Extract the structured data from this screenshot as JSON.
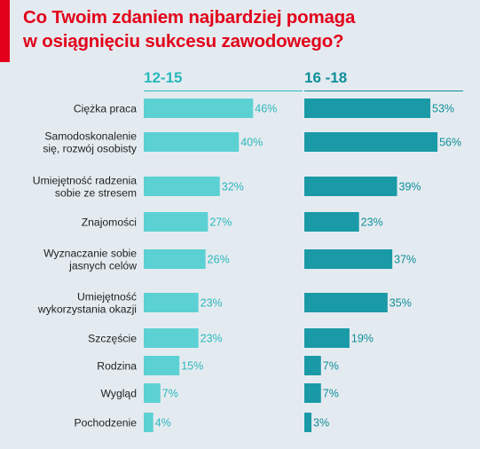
{
  "title_lines": [
    "Co Twoim zdaniem najbardziej pomaga",
    "w osiągnięciu sukcesu zawodowego?"
  ],
  "colors": {
    "title": "#e2001a",
    "accent": "#e2001a",
    "left": "#5cd1d3",
    "right": "#1a9aa6",
    "left_label": "#29b8bd",
    "right_label": "#0f8e99",
    "background": "#e4ebf0"
  },
  "chart_data": {
    "type": "bar",
    "orientation": "horizontal",
    "title": "Co Twoim zdaniem najbardziej pomaga w osiągnięciu sukcesu zawodowego?",
    "categories": [
      [
        "Ciężka praca"
      ],
      [
        "Samodoskonalenie",
        "się, rozwój osobisty"
      ],
      [
        "Umiejętność radzenia",
        "sobie ze stresem"
      ],
      [
        "Znajomości"
      ],
      [
        "Wyznaczanie sobie",
        "jasnych celów"
      ],
      [
        "Umiejętność",
        "wykorzystania okazji"
      ],
      [
        "Szczęście"
      ],
      [
        "Rodzina"
      ],
      [
        "Wygląd"
      ],
      [
        "Pochodzenie"
      ]
    ],
    "series": [
      {
        "name": "12-15",
        "values": [
          46,
          40,
          32,
          27,
          26,
          23,
          23,
          15,
          7,
          4
        ]
      },
      {
        "name": "16 -18",
        "values": [
          53,
          56,
          39,
          23,
          37,
          35,
          19,
          7,
          7,
          3
        ]
      }
    ],
    "value_suffix": "%"
  }
}
